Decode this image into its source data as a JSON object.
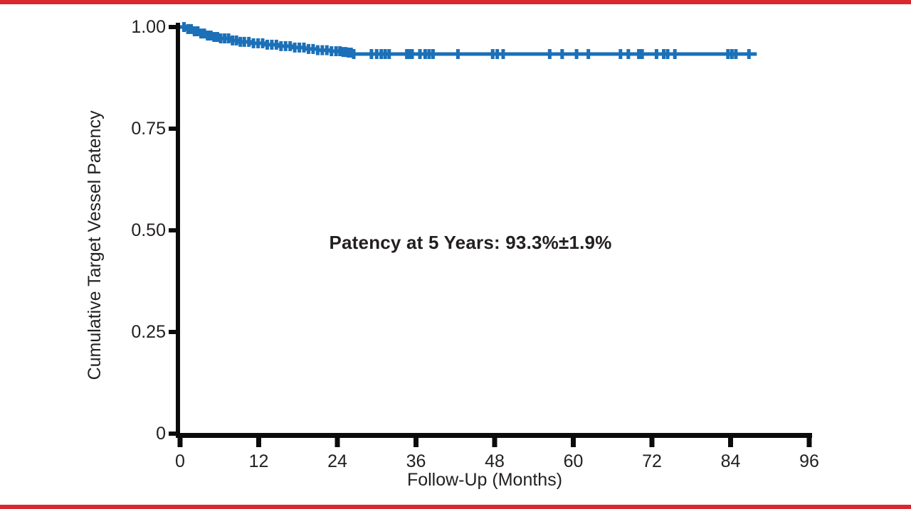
{
  "frame": {
    "top_bar_color": "#d7292f",
    "bottom_bar_color": "#d7292f",
    "background": "#ffffff"
  },
  "chart_data": {
    "type": "line",
    "variant": "kaplan_meier_step_curve",
    "title": "",
    "xlabel": "Follow-Up (Months)",
    "ylabel": "Cumulative Target Vessel Patency",
    "annotation": "Patency at 5 Years: 93.3%±1.9%",
    "xlim": [
      0,
      96
    ],
    "ylim": [
      0,
      1.0
    ],
    "x_ticks": [
      0,
      12,
      24,
      36,
      48,
      60,
      72,
      84,
      96
    ],
    "y_ticks": [
      {
        "label": "1.00",
        "value": 1.0
      },
      {
        "label": "0.75",
        "value": 0.75
      },
      {
        "label": "0.50",
        "value": 0.5
      },
      {
        "label": "0.25",
        "value": 0.25
      },
      {
        "label": "0",
        "value": 0.0
      }
    ],
    "grid": false,
    "legend": false,
    "line_color": "#1b70b8",
    "axis_color": "#0b0b0b",
    "text_color": "#231f20",
    "series": [
      {
        "name": "Cumulative target vessel patency",
        "end_month": 88,
        "final_value_label": "93.3%±1.9%",
        "steps": [
          [
            0,
            1.0
          ],
          [
            1,
            0.995
          ],
          [
            2,
            0.9895
          ],
          [
            3,
            0.984
          ],
          [
            4,
            0.979
          ],
          [
            5,
            0.9755
          ],
          [
            6,
            0.972
          ],
          [
            7.5,
            0.967
          ],
          [
            9,
            0.9635
          ],
          [
            11,
            0.96
          ],
          [
            13,
            0.9565
          ],
          [
            15,
            0.953
          ],
          [
            17,
            0.9495
          ],
          [
            19,
            0.946
          ],
          [
            21,
            0.943
          ],
          [
            23,
            0.9405
          ],
          [
            24.5,
            0.9385
          ],
          [
            25.5,
            0.937
          ],
          [
            26.5,
            0.9335
          ]
        ]
      }
    ],
    "censor_times": [
      0.6,
      1.2,
      1.7,
      2.2,
      2.7,
      3.2,
      3.7,
      4.2,
      4.7,
      5.2,
      5.7,
      6.2,
      6.8,
      7.4,
      8.0,
      8.6,
      9.2,
      9.8,
      10.5,
      11.2,
      11.9,
      12.6,
      13.3,
      14.0,
      14.7,
      15.4,
      16.1,
      16.8,
      17.5,
      18.2,
      18.9,
      19.6,
      20.3,
      21.0,
      21.7,
      22.4,
      23.1,
      23.8,
      24.4,
      24.9,
      25.3,
      25.7,
      26.1,
      26.5,
      29.2,
      30.0,
      30.7,
      31.3,
      31.9,
      34.6,
      35.0,
      35.4,
      36.6,
      37.4,
      38.0,
      38.6,
      42.4,
      47.7,
      48.4,
      49.3,
      56.4,
      58.3,
      60.5,
      62.3,
      67.2,
      68.4,
      70.0,
      70.5,
      72.7,
      73.8,
      74.4,
      75.5,
      83.6,
      84.2,
      84.8,
      86.8
    ]
  }
}
